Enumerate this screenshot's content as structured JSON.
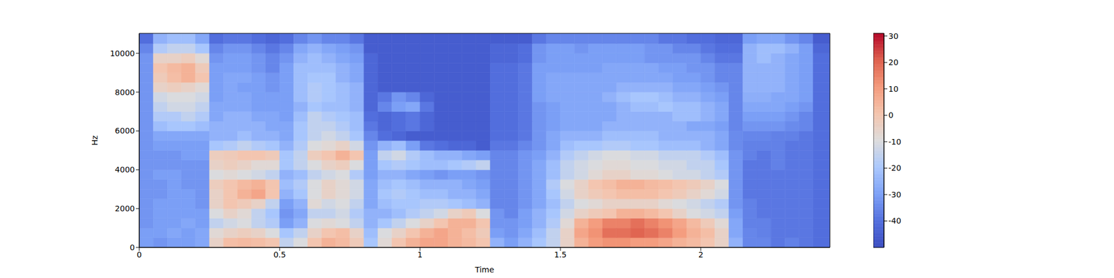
{
  "chart_data": {
    "type": "heatmap",
    "xlabel": "Time",
    "ylabel": "Hz",
    "xlim": [
      0,
      2.46
    ],
    "xticks": [
      0,
      0.5,
      1,
      1.5,
      2
    ],
    "ylim": [
      0,
      11025
    ],
    "yticks": [
      0,
      2000,
      4000,
      6000,
      8000,
      10000
    ],
    "time_bins": [
      0,
      0.05,
      0.1,
      0.15,
      0.2,
      0.25,
      0.3,
      0.35,
      0.4,
      0.45,
      0.5,
      0.55,
      0.6,
      0.65,
      0.7,
      0.75,
      0.8,
      0.85,
      0.9,
      0.95,
      1,
      1.05,
      1.1,
      1.15,
      1.2,
      1.25,
      1.3,
      1.35,
      1.4,
      1.45,
      1.5,
      1.55,
      1.6,
      1.65,
      1.7,
      1.75,
      1.8,
      1.85,
      1.9,
      1.95,
      2,
      2.05,
      2.1,
      2.15,
      2.2,
      2.25,
      2.3,
      2.35,
      2.4,
      2.46
    ],
    "freq_bins": [
      0,
      500,
      1000,
      1500,
      2000,
      2500,
      3000,
      3500,
      4000,
      4500,
      5000,
      5500,
      6000,
      6500,
      7000,
      7500,
      8000,
      8500,
      9000,
      9500,
      10000,
      10500,
      11025
    ],
    "cells": [
      [
        -30,
        -32,
        -30,
        -30,
        -28,
        -5,
        2,
        3,
        2,
        0,
        -15,
        -10,
        0,
        5,
        3,
        -2,
        -20,
        -8,
        0,
        5,
        8,
        8,
        5,
        3,
        0,
        -25,
        -30,
        -25,
        -20,
        -15,
        -5,
        5,
        10,
        12,
        12,
        10,
        10,
        8,
        5,
        3,
        0,
        -5,
        -25,
        -35,
        -35,
        -38,
        -36,
        -38,
        -40
      ],
      [
        -30,
        -30,
        -28,
        -30,
        -28,
        -8,
        -5,
        -3,
        -5,
        -10,
        -20,
        -15,
        -5,
        0,
        2,
        -5,
        -22,
        -10,
        -5,
        0,
        5,
        8,
        5,
        2,
        -2,
        -30,
        -32,
        -28,
        -22,
        -15,
        -5,
        8,
        12,
        18,
        18,
        20,
        18,
        15,
        10,
        5,
        2,
        -5,
        -28,
        -35,
        -36,
        -38,
        -38,
        -38,
        -40
      ],
      [
        -32,
        -30,
        -30,
        -28,
        -30,
        -15,
        -12,
        -10,
        -15,
        -18,
        -30,
        -25,
        -10,
        -8,
        -10,
        -15,
        -25,
        -20,
        -15,
        -10,
        -5,
        0,
        5,
        5,
        0,
        -32,
        -32,
        -30,
        -25,
        -18,
        -8,
        5,
        10,
        15,
        15,
        18,
        15,
        12,
        8,
        3,
        -2,
        -8,
        -28,
        -36,
        -36,
        -38,
        -38,
        -38,
        -40
      ],
      [
        -32,
        -30,
        -30,
        -30,
        -30,
        -10,
        -5,
        -8,
        -15,
        -20,
        -32,
        -28,
        -15,
        -15,
        -12,
        -18,
        -25,
        -25,
        -22,
        -18,
        -15,
        -12,
        -5,
        -2,
        -10,
        -32,
        -35,
        -30,
        -25,
        -20,
        -12,
        -5,
        -2,
        0,
        5,
        5,
        3,
        0,
        -5,
        -10,
        -12,
        -15,
        -30,
        -36,
        -38,
        -38,
        -38,
        -38,
        -40
      ],
      [
        -32,
        -30,
        -30,
        -30,
        -32,
        -5,
        0,
        -2,
        -5,
        -15,
        -30,
        -25,
        -8,
        -12,
        -10,
        -15,
        -28,
        -22,
        -20,
        -20,
        -18,
        -18,
        -20,
        -22,
        -25,
        -35,
        -35,
        -32,
        -28,
        -22,
        -15,
        -10,
        -8,
        -5,
        -5,
        -5,
        -5,
        -8,
        -10,
        -12,
        -15,
        -18,
        -32,
        -36,
        -38,
        -38,
        -38,
        -38,
        -40
      ],
      [
        -32,
        -32,
        -30,
        -30,
        -32,
        -5,
        0,
        5,
        8,
        0,
        -25,
        -20,
        -10,
        -5,
        -8,
        -12,
        -28,
        -20,
        -18,
        -20,
        -22,
        -22,
        -25,
        -25,
        -28,
        -35,
        -35,
        -32,
        -28,
        -20,
        -12,
        -5,
        -2,
        0,
        2,
        2,
        2,
        0,
        -2,
        -5,
        -8,
        -12,
        -32,
        -38,
        -38,
        -38,
        -38,
        -38,
        -40
      ],
      [
        -32,
        -32,
        -30,
        -32,
        -32,
        -3,
        0,
        3,
        5,
        0,
        -22,
        -18,
        -10,
        -5,
        -8,
        -12,
        -28,
        -22,
        -20,
        -22,
        -25,
        -25,
        -25,
        -28,
        -30,
        -35,
        -35,
        -32,
        -28,
        -18,
        -10,
        -5,
        0,
        2,
        5,
        5,
        3,
        2,
        0,
        -2,
        -5,
        -10,
        -32,
        -38,
        -38,
        -38,
        -38,
        -38,
        -40
      ],
      [
        -32,
        -30,
        -30,
        -32,
        -32,
        -10,
        -8,
        -10,
        -12,
        -15,
        -25,
        -22,
        -15,
        -12,
        -10,
        -18,
        -30,
        -25,
        -25,
        -28,
        -30,
        -32,
        -30,
        -30,
        -32,
        -35,
        -35,
        -32,
        -28,
        -22,
        -15,
        -12,
        -8,
        -5,
        -5,
        -8,
        -8,
        -10,
        -12,
        -12,
        -15,
        -18,
        -32,
        -38,
        -38,
        -38,
        -38,
        -38,
        -40
      ],
      [
        -32,
        -32,
        -32,
        -32,
        -32,
        -5,
        -3,
        -5,
        -8,
        -8,
        -20,
        -15,
        -10,
        -5,
        -3,
        -10,
        -30,
        -20,
        -18,
        -20,
        -22,
        -22,
        -20,
        -18,
        -15,
        -35,
        -35,
        -32,
        -28,
        -22,
        -15,
        -12,
        -10,
        -8,
        -8,
        -10,
        -10,
        -12,
        -12,
        -15,
        -15,
        -20,
        -32,
        -38,
        -38,
        -36,
        -38,
        -38,
        -40
      ],
      [
        -32,
        -32,
        -32,
        -30,
        -30,
        -3,
        -2,
        0,
        0,
        -2,
        -20,
        -15,
        -3,
        0,
        5,
        0,
        -30,
        -15,
        -12,
        -18,
        -22,
        -25,
        -25,
        -28,
        -30,
        -35,
        -35,
        -32,
        -30,
        -25,
        -18,
        -15,
        -12,
        -10,
        -10,
        -12,
        -12,
        -15,
        -15,
        -15,
        -18,
        -22,
        -32,
        -36,
        -38,
        -36,
        -38,
        -38,
        -40
      ],
      [
        -32,
        -30,
        -30,
        -30,
        -30,
        -20,
        -18,
        -15,
        -18,
        -20,
        -25,
        -18,
        -10,
        -8,
        -5,
        -12,
        -32,
        -25,
        -22,
        -30,
        -38,
        -40,
        -42,
        -42,
        -45,
        -38,
        -38,
        -35,
        -32,
        -28,
        -22,
        -20,
        -20,
        -18,
        -18,
        -20,
        -20,
        -22,
        -22,
        -22,
        -25,
        -28,
        -34,
        -36,
        -36,
        -36,
        -38,
        -38,
        -40
      ],
      [
        -32,
        -28,
        -28,
        -28,
        -28,
        -25,
        -25,
        -22,
        -25,
        -25,
        -28,
        -20,
        -15,
        -12,
        -15,
        -20,
        -35,
        -40,
        -42,
        -45,
        -45,
        -45,
        -45,
        -45,
        -45,
        -40,
        -40,
        -38,
        -32,
        -28,
        -25,
        -25,
        -25,
        -22,
        -22,
        -22,
        -22,
        -25,
        -25,
        -25,
        -25,
        -28,
        -34,
        -35,
        -35,
        -36,
        -36,
        -38,
        -40
      ],
      [
        -32,
        -22,
        -20,
        -20,
        -22,
        -25,
        -25,
        -25,
        -25,
        -28,
        -28,
        -20,
        -15,
        -15,
        -18,
        -22,
        -38,
        -42,
        -40,
        -38,
        -42,
        -45,
        -45,
        -45,
        -45,
        -40,
        -40,
        -38,
        -32,
        -30,
        -28,
        -28,
        -28,
        -25,
        -25,
        -25,
        -25,
        -25,
        -25,
        -28,
        -28,
        -30,
        -35,
        -32,
        -32,
        -32,
        -34,
        -35,
        -40
      ],
      [
        -32,
        -18,
        -18,
        -15,
        -18,
        -28,
        -25,
        -25,
        -28,
        -28,
        -30,
        -22,
        -15,
        -18,
        -20,
        -22,
        -40,
        -42,
        -40,
        -38,
        -42,
        -45,
        -45,
        -45,
        -45,
        -40,
        -40,
        -38,
        -32,
        -30,
        -28,
        -28,
        -28,
        -28,
        -25,
        -25,
        -25,
        -25,
        -22,
        -22,
        -25,
        -28,
        -35,
        -30,
        -30,
        -30,
        -32,
        -35,
        -40
      ],
      [
        -32,
        -15,
        -12,
        -12,
        -15,
        -28,
        -28,
        -28,
        -30,
        -30,
        -30,
        -25,
        -20,
        -22,
        -22,
        -25,
        -42,
        -35,
        -30,
        -28,
        -38,
        -45,
        -45,
        -45,
        -45,
        -40,
        -40,
        -38,
        -32,
        -30,
        -28,
        -28,
        -28,
        -28,
        -25,
        -22,
        -22,
        -20,
        -22,
        -22,
        -25,
        -28,
        -35,
        -28,
        -28,
        -28,
        -30,
        -32,
        -40
      ],
      [
        -32,
        -12,
        -10,
        -10,
        -12,
        -30,
        -28,
        -28,
        -30,
        -30,
        -30,
        -22,
        -18,
        -20,
        -22,
        -25,
        -42,
        -38,
        -32,
        -35,
        -42,
        -45,
        -45,
        -45,
        -45,
        -40,
        -40,
        -38,
        -30,
        -28,
        -28,
        -28,
        -28,
        -25,
        -22,
        -20,
        -20,
        -22,
        -25,
        -25,
        -28,
        -30,
        -35,
        -26,
        -26,
        -28,
        -28,
        -30,
        -40
      ],
      [
        -32,
        -5,
        -3,
        -5,
        -8,
        -30,
        -28,
        -30,
        -30,
        -32,
        -30,
        -22,
        -18,
        -20,
        -22,
        -25,
        -42,
        -45,
        -45,
        -45,
        -45,
        -45,
        -45,
        -45,
        -45,
        -40,
        -40,
        -38,
        -30,
        -28,
        -28,
        -28,
        -28,
        -28,
        -25,
        -25,
        -25,
        -25,
        -28,
        -28,
        -30,
        -32,
        -35,
        -25,
        -25,
        -25,
        -28,
        -30,
        -40
      ],
      [
        -32,
        -2,
        2,
        5,
        0,
        -30,
        -28,
        -28,
        -30,
        -32,
        -30,
        -22,
        -20,
        -20,
        -25,
        -28,
        -42,
        -45,
        -45,
        -45,
        -45,
        -45,
        -45,
        -45,
        -45,
        -40,
        -40,
        -38,
        -30,
        -28,
        -28,
        -28,
        -28,
        -28,
        -28,
        -28,
        -28,
        -28,
        -30,
        -30,
        -32,
        -35,
        -35,
        -25,
        -25,
        -25,
        -28,
        -30,
        -40
      ],
      [
        -32,
        0,
        3,
        5,
        -2,
        -30,
        -30,
        -30,
        -32,
        -35,
        -30,
        -22,
        -22,
        -22,
        -25,
        -28,
        -42,
        -45,
        -45,
        -45,
        -45,
        -45,
        -45,
        -45,
        -45,
        -40,
        -40,
        -38,
        -30,
        -30,
        -30,
        -30,
        -30,
        -28,
        -28,
        -28,
        -28,
        -30,
        -30,
        -32,
        -32,
        -35,
        -35,
        -25,
        -25,
        -25,
        -28,
        -30,
        -40
      ],
      [
        -32,
        -5,
        -5,
        -3,
        -8,
        -32,
        -30,
        -30,
        -32,
        -35,
        -32,
        -25,
        -22,
        -25,
        -28,
        -30,
        -42,
        -45,
        -45,
        -45,
        -45,
        -45,
        -45,
        -45,
        -45,
        -42,
        -42,
        -40,
        -32,
        -30,
        -30,
        -30,
        -30,
        -30,
        -30,
        -30,
        -32,
        -32,
        -32,
        -32,
        -35,
        -38,
        -38,
        -25,
        -22,
        -25,
        -28,
        -30,
        -40
      ],
      [
        -35,
        -18,
        -15,
        -15,
        -20,
        -35,
        -32,
        -32,
        -35,
        -38,
        -35,
        -28,
        -25,
        -28,
        -30,
        -32,
        -45,
        -45,
        -45,
        -45,
        -45,
        -45,
        -45,
        -45,
        -45,
        -42,
        -42,
        -40,
        -32,
        -30,
        -30,
        -32,
        -30,
        -30,
        -30,
        -30,
        -32,
        -32,
        -35,
        -35,
        -38,
        -40,
        -40,
        -25,
        -22,
        -22,
        -25,
        -30,
        -42
      ],
      [
        -40,
        -25,
        -22,
        -22,
        -28,
        -40,
        -38,
        -38,
        -40,
        -42,
        -40,
        -35,
        -32,
        -35,
        -35,
        -38,
        -45,
        -45,
        -45,
        -45,
        -45,
        -45,
        -45,
        -45,
        -45,
        -45,
        -45,
        -45,
        -38,
        -35,
        -35,
        -35,
        -35,
        -35,
        -35,
        -35,
        -35,
        -38,
        -38,
        -40,
        -40,
        -42,
        -42,
        -30,
        -28,
        -28,
        -32,
        -35,
        -45
      ]
    ],
    "colorbar": {
      "range": [
        -50,
        31
      ],
      "ticks": [
        -40,
        -30,
        -20,
        -10,
        0,
        10,
        20,
        30
      ]
    }
  }
}
